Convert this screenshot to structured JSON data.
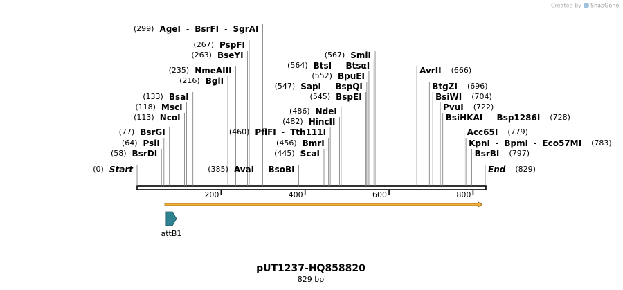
{
  "watermark": {
    "prefix": "Created by",
    "brand": "SnapGene"
  },
  "map": {
    "title": "pUT1237-HQ858820",
    "length": 829,
    "length_label": "829 bp",
    "separator": "-",
    "scale_ticks": [
      200,
      400,
      600,
      800
    ],
    "ends": [
      {
        "position": 0,
        "position_label": "(0)",
        "label": "Start"
      },
      {
        "position": 829,
        "position_label": "(829)",
        "label": "End"
      }
    ],
    "sites": [
      {
        "position": 299,
        "position_label": "(299)",
        "enzymes": [
          "AgeI",
          "BsrFI",
          "SgrAI"
        ]
      },
      {
        "position": 267,
        "position_label": "(267)",
        "enzymes": [
          "PspFI"
        ]
      },
      {
        "position": 263,
        "position_label": "(263)",
        "enzymes": [
          "BseYI"
        ]
      },
      {
        "position": 235,
        "position_label": "(235)",
        "enzymes": [
          "NmeAIII"
        ]
      },
      {
        "position": 216,
        "position_label": "(216)",
        "enzymes": [
          "BglI"
        ]
      },
      {
        "position": 133,
        "position_label": "(133)",
        "enzymes": [
          "BsaI"
        ]
      },
      {
        "position": 118,
        "position_label": "(118)",
        "enzymes": [
          "MscI"
        ]
      },
      {
        "position": 113,
        "position_label": "(113)",
        "enzymes": [
          "NcoI"
        ]
      },
      {
        "position": 77,
        "position_label": "(77)",
        "enzymes": [
          "BsrGI"
        ]
      },
      {
        "position": 64,
        "position_label": "(64)",
        "enzymes": [
          "PsiI"
        ]
      },
      {
        "position": 58,
        "position_label": "(58)",
        "enzymes": [
          "BsrDI"
        ]
      },
      {
        "position": 385,
        "position_label": "(385)",
        "enzymes": [
          "AvaI",
          "BsoBI"
        ]
      },
      {
        "position": 460,
        "position_label": "(460)",
        "enzymes": [
          "PflFI",
          "Tth111I"
        ]
      },
      {
        "position": 456,
        "position_label": "(456)",
        "enzymes": [
          "BmrI"
        ]
      },
      {
        "position": 445,
        "position_label": "(445)",
        "enzymes": [
          "ScaI"
        ]
      },
      {
        "position": 486,
        "position_label": "(486)",
        "enzymes": [
          "NdeI"
        ]
      },
      {
        "position": 482,
        "position_label": "(482)",
        "enzymes": [
          "HincII"
        ]
      },
      {
        "position": 567,
        "position_label": "(567)",
        "enzymes": [
          "SmlI"
        ]
      },
      {
        "position": 564,
        "position_label": "(564)",
        "enzymes": [
          "BtsI",
          "BtsαI"
        ]
      },
      {
        "position": 552,
        "position_label": "(552)",
        "enzymes": [
          "BpuEI"
        ]
      },
      {
        "position": 547,
        "position_label": "(547)",
        "enzymes": [
          "SapI",
          "BspQI"
        ]
      },
      {
        "position": 545,
        "position_label": "(545)",
        "enzymes": [
          "BspEI"
        ]
      },
      {
        "position": 666,
        "position_label": "(666)",
        "enzymes": [
          "AvrII"
        ]
      },
      {
        "position": 696,
        "position_label": "(696)",
        "enzymes": [
          "BtgZI"
        ]
      },
      {
        "position": 704,
        "position_label": "(704)",
        "enzymes": [
          "BsiWI"
        ]
      },
      {
        "position": 722,
        "position_label": "(722)",
        "enzymes": [
          "PvuI"
        ]
      },
      {
        "position": 728,
        "position_label": "(728)",
        "enzymes": [
          "BsiHKAI",
          "Bsp1286I"
        ]
      },
      {
        "position": 779,
        "position_label": "(779)",
        "enzymes": [
          "Acc65I"
        ]
      },
      {
        "position": 783,
        "position_label": "(783)",
        "enzymes": [
          "KpnI",
          "BpmI",
          "Eco57MI"
        ]
      },
      {
        "position": 797,
        "position_label": "(797)",
        "enzymes": [
          "BsrBI"
        ]
      }
    ],
    "features": [
      {
        "name": "attB1",
        "start": 69,
        "end": 94,
        "color": "#2f8291"
      },
      {
        "start": 66,
        "end": 822,
        "color": "#f7b43a"
      }
    ]
  }
}
